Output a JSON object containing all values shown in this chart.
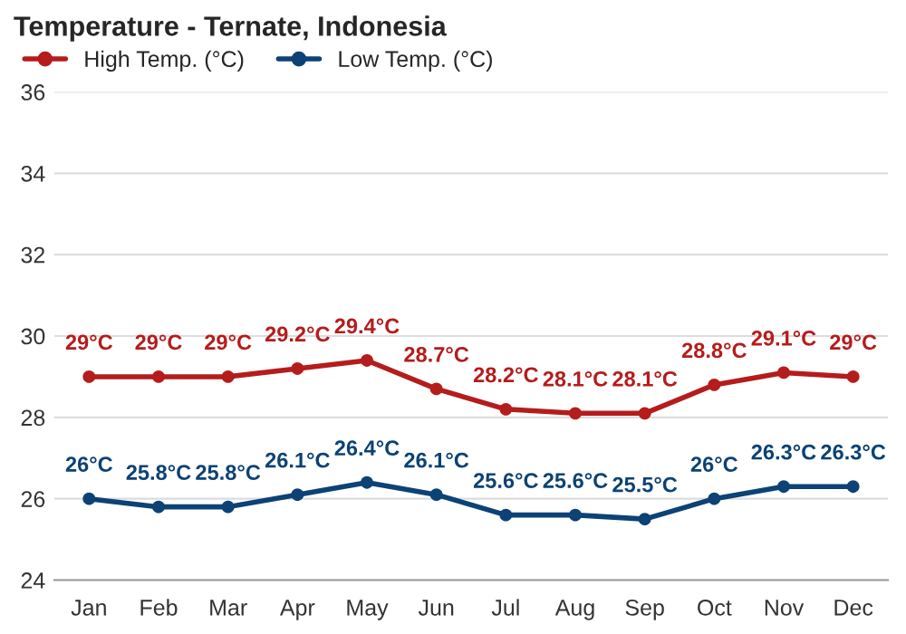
{
  "chart_data": {
    "type": "line",
    "title": "Temperature - Ternate, Indonesia",
    "categories": [
      "Jan",
      "Feb",
      "Mar",
      "Apr",
      "May",
      "Jun",
      "Jul",
      "Aug",
      "Sep",
      "Oct",
      "Nov",
      "Dec"
    ],
    "series": [
      {
        "name": "High Temp. (°C)",
        "color": "#b51c1c",
        "values": [
          29,
          29,
          29,
          29.2,
          29.4,
          28.7,
          28.2,
          28.1,
          28.1,
          28.8,
          29.1,
          29
        ],
        "value_labels": [
          "29°C",
          "29°C",
          "29°C",
          "29.2°C",
          "29.4°C",
          "28.7°C",
          "28.2°C",
          "28.1°C",
          "28.1°C",
          "28.8°C",
          "29.1°C",
          "29°C"
        ]
      },
      {
        "name": "Low Temp. (°C)",
        "color": "#0c4275",
        "values": [
          26,
          25.8,
          25.8,
          26.1,
          26.4,
          26.1,
          25.6,
          25.6,
          25.5,
          26,
          26.3,
          26.3
        ],
        "value_labels": [
          "26°C",
          "25.8°C",
          "25.8°C",
          "26.1°C",
          "26.4°C",
          "26.1°C",
          "25.6°C",
          "25.6°C",
          "25.5°C",
          "26°C",
          "26.3°C",
          "26.3°C"
        ]
      }
    ],
    "ylim": [
      24,
      36
    ],
    "yticks": [
      24,
      26,
      28,
      30,
      32,
      34,
      36
    ],
    "grid": "y",
    "legend": "top left",
    "marker": "circle",
    "line_style": "solid"
  }
}
